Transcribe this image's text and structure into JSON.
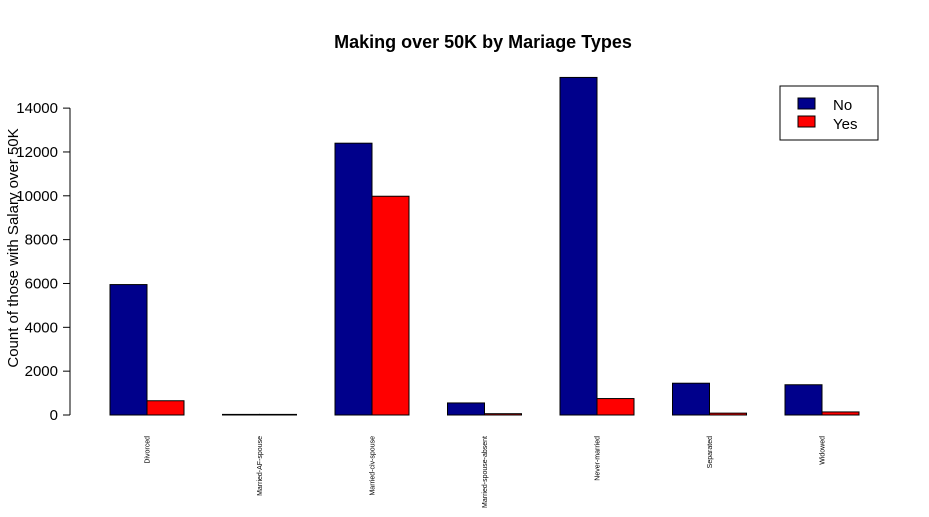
{
  "chart_data": {
    "type": "bar",
    "title": "Making over 50K by Mariage Types",
    "xlabel": "",
    "ylabel": "Count of those with Salary over 50K",
    "categories": [
      "Divorced",
      "Married-AF-spouse",
      "Married-civ-spouse",
      "Married-spouse-absent",
      "Never-married",
      "Separated",
      "Widowed"
    ],
    "series": [
      {
        "name": "No",
        "color": "#00008B",
        "values": [
          5950,
          15,
          12400,
          550,
          15400,
          1450,
          1380
        ]
      },
      {
        "name": "Yes",
        "color": "#FF0000",
        "values": [
          650,
          10,
          9980,
          60,
          750,
          85,
          140
        ]
      }
    ],
    "yticks": [
      "0",
      "2000",
      "4000",
      "6000",
      "8000",
      "10000",
      "12000",
      "14000"
    ],
    "ylim": [
      0,
      15400
    ],
    "legend_placement": "top-right",
    "grid": false
  }
}
